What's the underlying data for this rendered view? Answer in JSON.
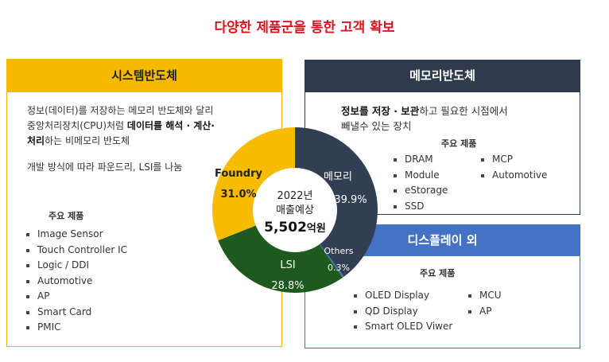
{
  "title": "다양한 제품군을 통한 고객 확보",
  "left": {
    "header": "시스템반도체",
    "desc_line1": "정보(데이터)를 저장하는 메모리 반도체와 달리",
    "desc_line2_pre": "중앙처리장치(CPU)처럼 ",
    "desc_line2_bold": "데이터를 해석 · 계산·",
    "desc_line3_bold": "처리",
    "desc_line3_post": "하는 비메모리 반도체",
    "desc2": "개발 방식에 따라 파운드리, LSI를 나눔",
    "products_title": "주요 제품",
    "products": [
      "Image Sensor",
      "Touch Controller IC",
      "Logic / DDI",
      "Automotive",
      "AP",
      "Smart Card",
      "PMIC"
    ]
  },
  "memory": {
    "header": "메모리반도체",
    "desc_bold": "정보를 저장 · 보관",
    "desc_post": "하고 필요한 시점에서",
    "desc_line2": "빼낼수 있는 장치",
    "products_title": "주요 제품",
    "col1": [
      "DRAM",
      "Module",
      "eStorage",
      "SSD"
    ],
    "col2": [
      "MCP",
      "Automotive"
    ]
  },
  "display": {
    "header": "디스플레이 외",
    "products_title": "주요 제품",
    "col1": [
      "OLED Display",
      "QD Display",
      "Smart OLED Viwer"
    ],
    "col2": [
      "MCU",
      "AP"
    ]
  },
  "center": {
    "line1": "2022년",
    "line2": "매출예상",
    "value": "5,502",
    "unit": "억원"
  },
  "chart_data": {
    "type": "pie",
    "title": "",
    "slices": [
      {
        "label": "메모리",
        "value": 39.9,
        "value_label": "39.9%",
        "color": "#323e52"
      },
      {
        "label": "Others",
        "value": 0.3,
        "value_label": "0.3%",
        "color": "#4472c4"
      },
      {
        "label": "LSI",
        "value": 28.8,
        "value_label": "28.8%",
        "color": "#1e5a1e"
      },
      {
        "label": "Foundry",
        "value": 31.0,
        "value_label": "31.0%",
        "color": "#f7bc00"
      }
    ]
  }
}
